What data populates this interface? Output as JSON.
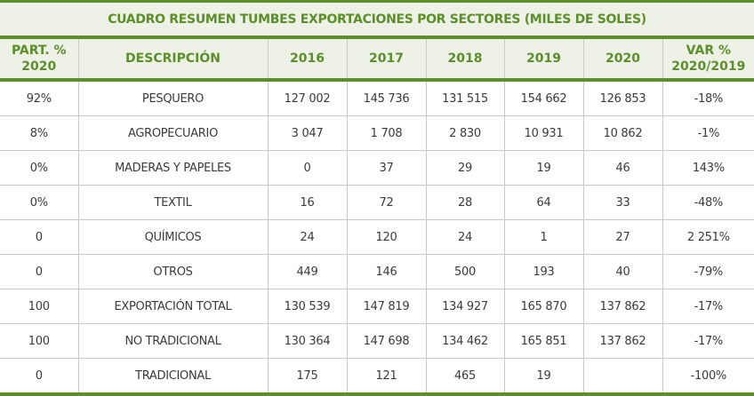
{
  "table": {
    "title": "CUADRO RESUMEN TUMBES EXPORTACIONES POR SECTORES (MILES DE SOLES)",
    "headers": {
      "part_line1": "PART. %",
      "part_line2": "2020",
      "descripcion": "DESCRIPCIÓN",
      "y2016": "2016",
      "y2017": "2017",
      "y2018": "2018",
      "y2019": "2019",
      "y2020": "2020",
      "var_line1": "VAR %",
      "var_line2": "2020/2019"
    },
    "rows": [
      {
        "part": "92%",
        "desc": "PESQUERO",
        "y2016": "127 002",
        "y2017": "145 736",
        "y2018": "131 515",
        "y2019": "154 662",
        "y2020": "126 853",
        "var": "-18%"
      },
      {
        "part": "8%",
        "desc": "AGROPECUARIO",
        "y2016": "3 047",
        "y2017": "1 708",
        "y2018": "2 830",
        "y2019": "10 931",
        "y2020": "10 862",
        "var": "-1%"
      },
      {
        "part": "0%",
        "desc": "MADERAS Y PAPELES",
        "y2016": "0",
        "y2017": "37",
        "y2018": "29",
        "y2019": "19",
        "y2020": "46",
        "var": "143%"
      },
      {
        "part": "0%",
        "desc": "TEXTIL",
        "y2016": "16",
        "y2017": "72",
        "y2018": "28",
        "y2019": "64",
        "y2020": "33",
        "var": "-48%"
      },
      {
        "part": "0",
        "desc": "QUÍMICOS",
        "y2016": "24",
        "y2017": "120",
        "y2018": "24",
        "y2019": "1",
        "y2020": "27",
        "var": "2 251%"
      },
      {
        "part": "0",
        "desc": "OTROS",
        "y2016": "449",
        "y2017": "146",
        "y2018": "500",
        "y2019": "193",
        "y2020": "40",
        "var": "-79%"
      },
      {
        "part": "100",
        "desc": "EXPORTACIÓN TOTAL",
        "y2016": "130 539",
        "y2017": "147 819",
        "y2018": "134 927",
        "y2019": "165 870",
        "y2020": "137 862",
        "var": "-17%"
      },
      {
        "part": "100",
        "desc": "NO TRADICIONAL",
        "y2016": "130 364",
        "y2017": "147 698",
        "y2018": "134 462",
        "y2019": "165 851",
        "y2020": "137 862",
        "var": "-17%"
      },
      {
        "part": "0",
        "desc": "TRADICIONAL",
        "y2016": "175",
        "y2017": "121",
        "y2018": "465",
        "y2019": "19",
        "y2020": "",
        "var": "-100%"
      }
    ]
  },
  "colors": {
    "accent_green": "#5a8f2a",
    "header_bg": "#eef1e6",
    "grid_line": "#c9c9c9",
    "body_text": "#3a3a3a"
  }
}
